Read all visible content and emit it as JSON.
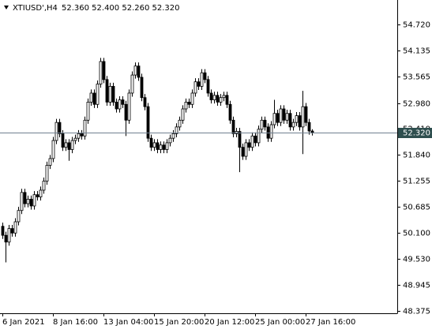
{
  "chart_data": {
    "type": "candlestick",
    "header": {
      "symbol": "XTIUSD',H4",
      "ohlc": "52.360 52.400 52.260 52.320"
    },
    "categories": [
      "6 Jan 2021",
      null,
      null,
      null,
      null,
      null,
      null,
      null,
      null,
      null,
      null,
      null,
      null,
      null,
      null,
      null,
      "8 Jan 16:00",
      null,
      null,
      null,
      null,
      null,
      null,
      null,
      null,
      null,
      null,
      null,
      null,
      null,
      null,
      null,
      "13 Jan 04:00",
      null,
      null,
      null,
      null,
      null,
      null,
      null,
      null,
      null,
      null,
      null,
      null,
      null,
      null,
      null,
      "15 Jan 20:00",
      null,
      null,
      null,
      null,
      null,
      null,
      null,
      null,
      null,
      null,
      null,
      null,
      null,
      null,
      null,
      "20 Jan 12:00",
      null,
      null,
      null,
      null,
      null,
      null,
      null,
      null,
      null,
      null,
      null,
      null,
      null,
      null,
      null,
      "25 Jan 00:00",
      null,
      null,
      null,
      null,
      null,
      null,
      null,
      null,
      null,
      null,
      null,
      null,
      null,
      null,
      null,
      "27 Jan 16:00",
      null,
      null
    ],
    "open": [
      50.25,
      50.05,
      49.9,
      50.2,
      50.1,
      50.35,
      50.6,
      51.0,
      50.75,
      50.85,
      50.7,
      50.95,
      50.9,
      51.05,
      51.25,
      51.6,
      51.75,
      52.15,
      52.55,
      52.3,
      52.0,
      52.1,
      51.95,
      52.15,
      52.2,
      52.3,
      52.25,
      52.6,
      53.0,
      53.2,
      52.95,
      53.4,
      53.9,
      53.5,
      53.0,
      53.35,
      53.0,
      52.85,
      53.05,
      52.95,
      52.6,
      53.2,
      53.6,
      53.8,
      53.55,
      53.1,
      52.9,
      52.2,
      52.0,
      52.1,
      51.95,
      52.05,
      51.95,
      52.1,
      52.2,
      52.3,
      52.45,
      52.6,
      52.85,
      53.0,
      52.95,
      53.2,
      53.45,
      53.35,
      53.65,
      53.5,
      53.2,
      53.05,
      53.15,
      53.0,
      53.1,
      53.15,
      52.95,
      52.6,
      52.3,
      52.35,
      52.0,
      51.8,
      52.1,
      52.0,
      52.25,
      52.1,
      52.4,
      52.6,
      52.45,
      52.2,
      52.5,
      52.75,
      52.55,
      52.85,
      52.6,
      52.75,
      52.45,
      52.55,
      52.7,
      52.45,
      52.9,
      52.55,
      52.36
    ],
    "high": [
      50.33,
      50.13,
      50.28,
      50.28,
      50.43,
      50.68,
      51.08,
      51.08,
      50.93,
      50.93,
      51.03,
      51.03,
      51.13,
      51.33,
      51.68,
      51.83,
      52.23,
      52.63,
      52.63,
      52.38,
      52.18,
      52.18,
      52.23,
      52.28,
      52.38,
      52.38,
      52.68,
      53.08,
      53.28,
      53.28,
      53.48,
      53.98,
      53.98,
      53.58,
      53.43,
      53.43,
      53.08,
      53.13,
      53.13,
      53.03,
      53.28,
      53.68,
      53.88,
      53.88,
      53.63,
      53.18,
      52.98,
      52.28,
      52.18,
      52.18,
      52.13,
      52.13,
      52.18,
      52.28,
      52.38,
      52.53,
      52.68,
      52.93,
      53.08,
      53.08,
      53.28,
      53.53,
      53.53,
      53.73,
      53.73,
      53.58,
      53.28,
      53.23,
      53.23,
      53.18,
      53.23,
      53.23,
      53.03,
      52.68,
      52.43,
      52.43,
      52.08,
      52.18,
      52.18,
      52.33,
      52.33,
      52.48,
      52.68,
      52.68,
      52.53,
      52.58,
      53.05,
      52.83,
      52.93,
      52.93,
      52.83,
      52.83,
      52.63,
      52.78,
      52.78,
      53.25,
      52.98,
      52.63,
      52.4
    ],
    "low": [
      49.97,
      49.45,
      49.82,
      50.02,
      50.02,
      50.27,
      50.52,
      50.67,
      50.67,
      50.62,
      50.62,
      50.82,
      50.82,
      50.97,
      51.17,
      51.52,
      51.67,
      52.07,
      52.22,
      51.92,
      51.92,
      51.7,
      51.87,
      52.07,
      52.12,
      52.17,
      52.17,
      52.52,
      52.92,
      52.87,
      52.87,
      53.32,
      53.42,
      52.92,
      52.92,
      52.92,
      52.77,
      52.77,
      52.87,
      52.25,
      52.52,
      53.12,
      53.52,
      53.47,
      53.02,
      52.82,
      52.12,
      51.92,
      51.92,
      51.87,
      51.87,
      51.87,
      51.87,
      52.02,
      52.12,
      52.22,
      52.37,
      52.52,
      52.77,
      52.87,
      52.87,
      53.12,
      53.27,
      53.27,
      53.42,
      53.12,
      52.97,
      52.97,
      52.92,
      52.92,
      53.02,
      52.87,
      52.52,
      52.22,
      52.22,
      51.45,
      51.72,
      51.72,
      51.92,
      51.92,
      52.02,
      52.02,
      52.32,
      52.37,
      52.12,
      52.12,
      52.42,
      52.47,
      52.47,
      52.52,
      52.52,
      52.37,
      52.37,
      52.47,
      52.37,
      51.85,
      52.47,
      52.28,
      52.26
    ],
    "close": [
      50.05,
      49.9,
      50.2,
      50.1,
      50.35,
      50.6,
      51.0,
      50.75,
      50.85,
      50.7,
      50.95,
      50.9,
      51.05,
      51.25,
      51.6,
      51.75,
      52.15,
      52.55,
      52.3,
      52.0,
      52.1,
      51.95,
      52.15,
      52.2,
      52.3,
      52.25,
      52.6,
      53.0,
      53.2,
      52.95,
      53.4,
      53.9,
      53.5,
      53.0,
      53.35,
      53.0,
      52.85,
      53.05,
      52.95,
      52.6,
      53.2,
      53.6,
      53.8,
      53.55,
      53.1,
      52.9,
      52.2,
      52.0,
      52.1,
      51.95,
      52.05,
      51.95,
      52.1,
      52.2,
      52.3,
      52.45,
      52.6,
      52.85,
      53.0,
      52.95,
      53.2,
      53.45,
      53.35,
      53.65,
      53.5,
      53.2,
      53.05,
      53.15,
      53.0,
      53.1,
      53.15,
      52.95,
      52.6,
      52.3,
      52.35,
      52.0,
      51.8,
      52.1,
      52.0,
      52.25,
      52.1,
      52.4,
      52.6,
      52.45,
      52.2,
      52.5,
      52.75,
      52.55,
      52.85,
      52.6,
      52.75,
      52.45,
      52.55,
      52.7,
      52.45,
      52.9,
      52.55,
      52.36,
      52.32
    ],
    "ylim": [
      48.323,
      55.262
    ],
    "yticks": [
      {
        "value": 54.72,
        "label": "54.720"
      },
      {
        "value": 54.135,
        "label": "54.135"
      },
      {
        "value": 53.565,
        "label": "53.565"
      },
      {
        "value": 52.98,
        "label": "52.980"
      },
      {
        "value": 52.41,
        "label": "52.410"
      },
      {
        "value": 51.84,
        "label": "51.840"
      },
      {
        "value": 51.255,
        "label": "51.255"
      },
      {
        "value": 50.685,
        "label": "50.685"
      },
      {
        "value": 50.1,
        "label": "50.100"
      },
      {
        "value": 49.53,
        "label": "49.530"
      },
      {
        "value": 48.945,
        "label": "48.945"
      },
      {
        "value": 48.375,
        "label": "48.375"
      }
    ],
    "price_line": {
      "value": 52.32,
      "label": "52.320"
    },
    "bull_fill": "#ffffff",
    "bear_fill": "#000000",
    "candle_stroke": "#000000",
    "price_line_color": "#708090"
  }
}
